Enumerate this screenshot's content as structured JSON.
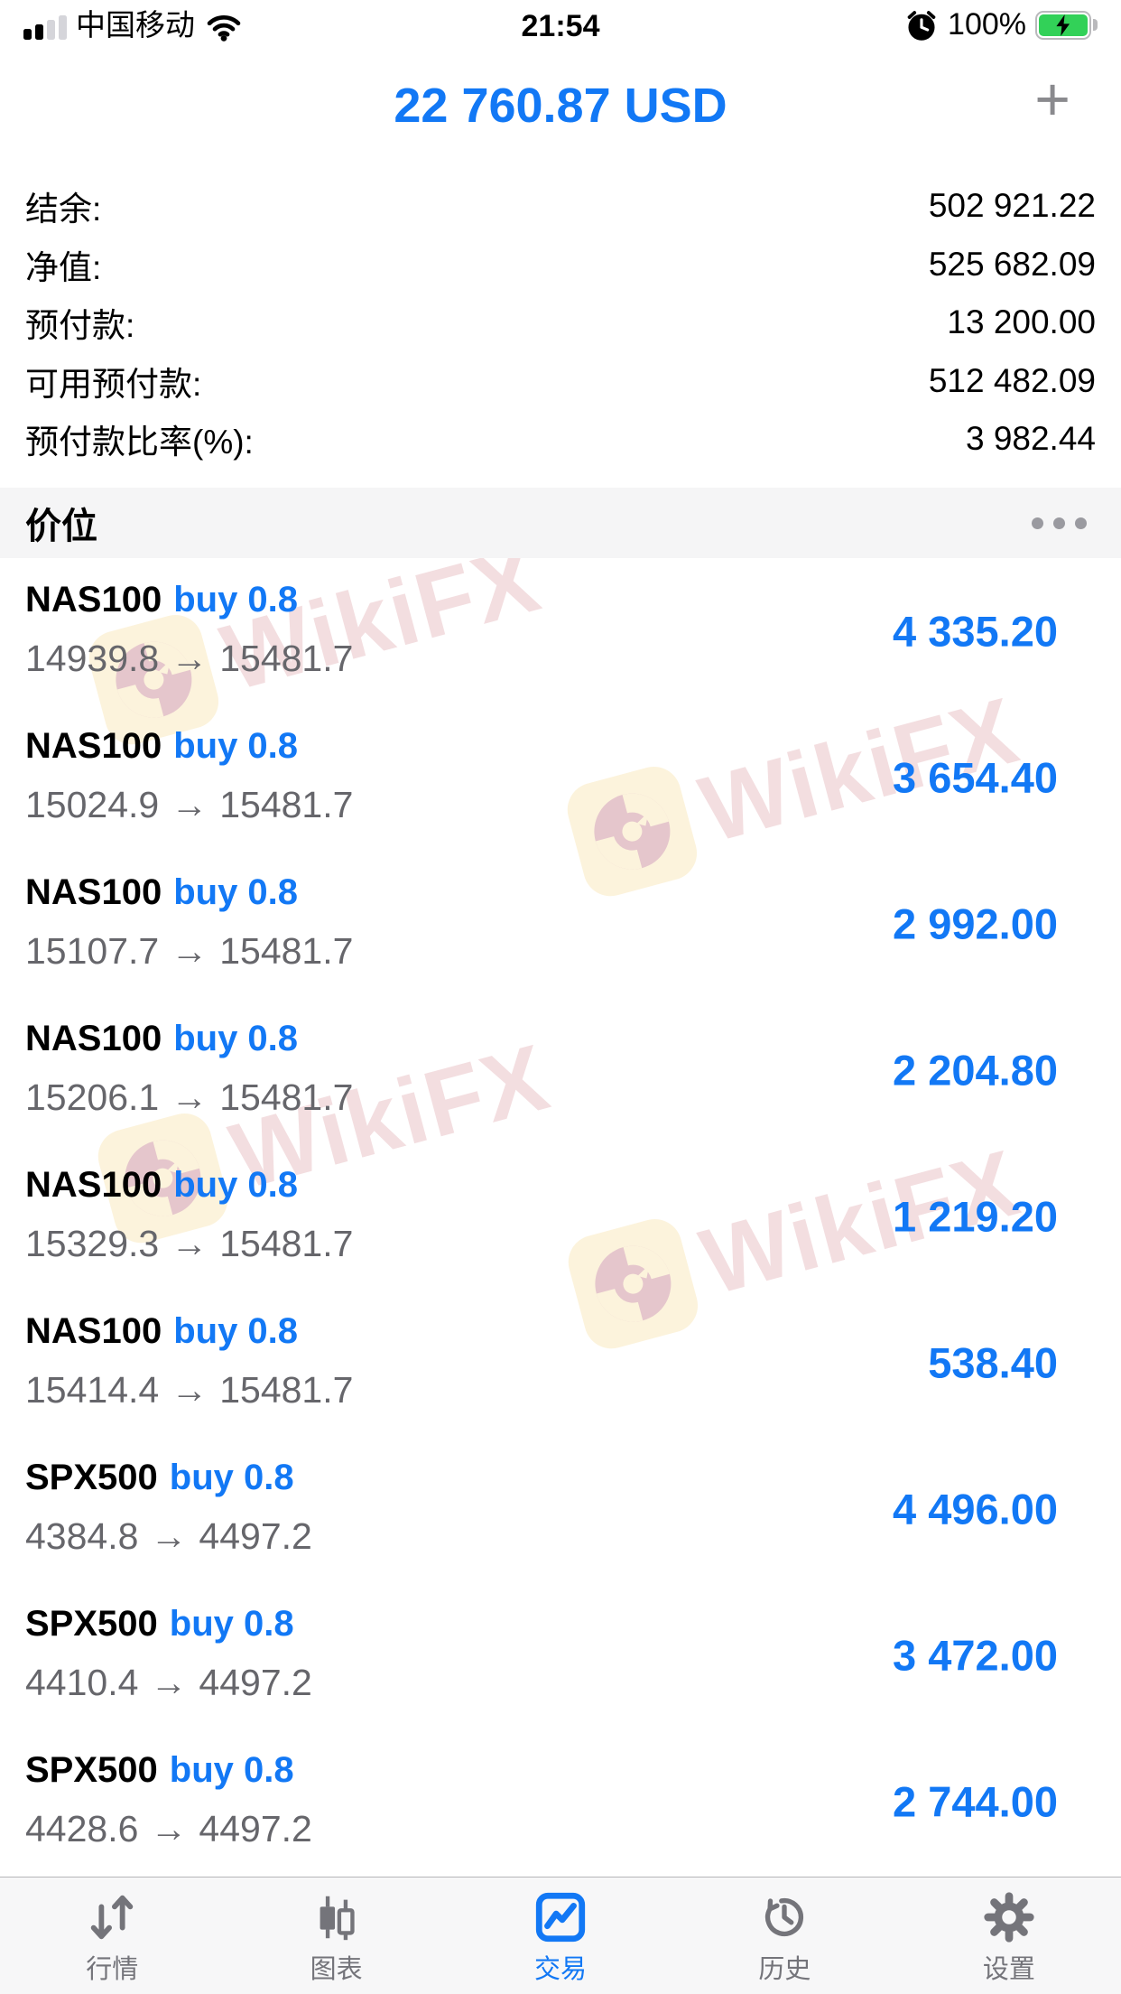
{
  "status_bar": {
    "carrier": "中国移动",
    "time": "21:54",
    "battery_percent": "100%"
  },
  "header": {
    "balance": "22 760.87 USD",
    "add_label": "+"
  },
  "account_summary": {
    "rows": [
      {
        "label": "结余:",
        "value": "502 921.22"
      },
      {
        "label": "净值:",
        "value": "525 682.09"
      },
      {
        "label": "预付款:",
        "value": "13 200.00"
      },
      {
        "label": "可用预付款:",
        "value": "512 482.09"
      },
      {
        "label": "预付款比率(%):",
        "value": "3 982.44"
      }
    ]
  },
  "positions": {
    "section_title": "价位",
    "trades": [
      {
        "symbol": "NAS100",
        "side": "buy 0.8",
        "open": "14939.8",
        "arrow": "→",
        "current": "15481.7",
        "profit": "4 335.20"
      },
      {
        "symbol": "NAS100",
        "side": "buy 0.8",
        "open": "15024.9",
        "arrow": "→",
        "current": "15481.7",
        "profit": "3 654.40"
      },
      {
        "symbol": "NAS100",
        "side": "buy 0.8",
        "open": "15107.7",
        "arrow": "→",
        "current": "15481.7",
        "profit": "2 992.00"
      },
      {
        "symbol": "NAS100",
        "side": "buy 0.8",
        "open": "15206.1",
        "arrow": "→",
        "current": "15481.7",
        "profit": "2 204.80"
      },
      {
        "symbol": "NAS100",
        "side": "buy 0.8",
        "open": "15329.3",
        "arrow": "→",
        "current": "15481.7",
        "profit": "1 219.20"
      },
      {
        "symbol": "NAS100",
        "side": "buy 0.8",
        "open": "15414.4",
        "arrow": "→",
        "current": "15481.7",
        "profit": "538.40"
      },
      {
        "symbol": "SPX500",
        "side": "buy 0.8",
        "open": "4384.8",
        "arrow": "→",
        "current": "4497.2",
        "profit": "4 496.00"
      },
      {
        "symbol": "SPX500",
        "side": "buy 0.8",
        "open": "4410.4",
        "arrow": "→",
        "current": "4497.2",
        "profit": "3 472.00"
      },
      {
        "symbol": "SPX500",
        "side": "buy 0.8",
        "open": "4428.6",
        "arrow": "→",
        "current": "4497.2",
        "profit": "2 744.00"
      }
    ]
  },
  "tab_bar": {
    "items": [
      {
        "label": "行情",
        "active": false
      },
      {
        "label": "图表",
        "active": false
      },
      {
        "label": "交易",
        "active": true
      },
      {
        "label": "历史",
        "active": false
      },
      {
        "label": "设置",
        "active": false
      }
    ]
  },
  "watermark": {
    "text": "WikiFX"
  },
  "colors": {
    "accent_blue": "#1278f5",
    "battery_green": "#32d158",
    "price_gray": "#66666b",
    "inactive_tab_gray": "#74747a",
    "watermark_pink": "#f3dee0",
    "watermark_cream": "#fcf3dc",
    "section_bar_gray": "#f5f5f6"
  }
}
